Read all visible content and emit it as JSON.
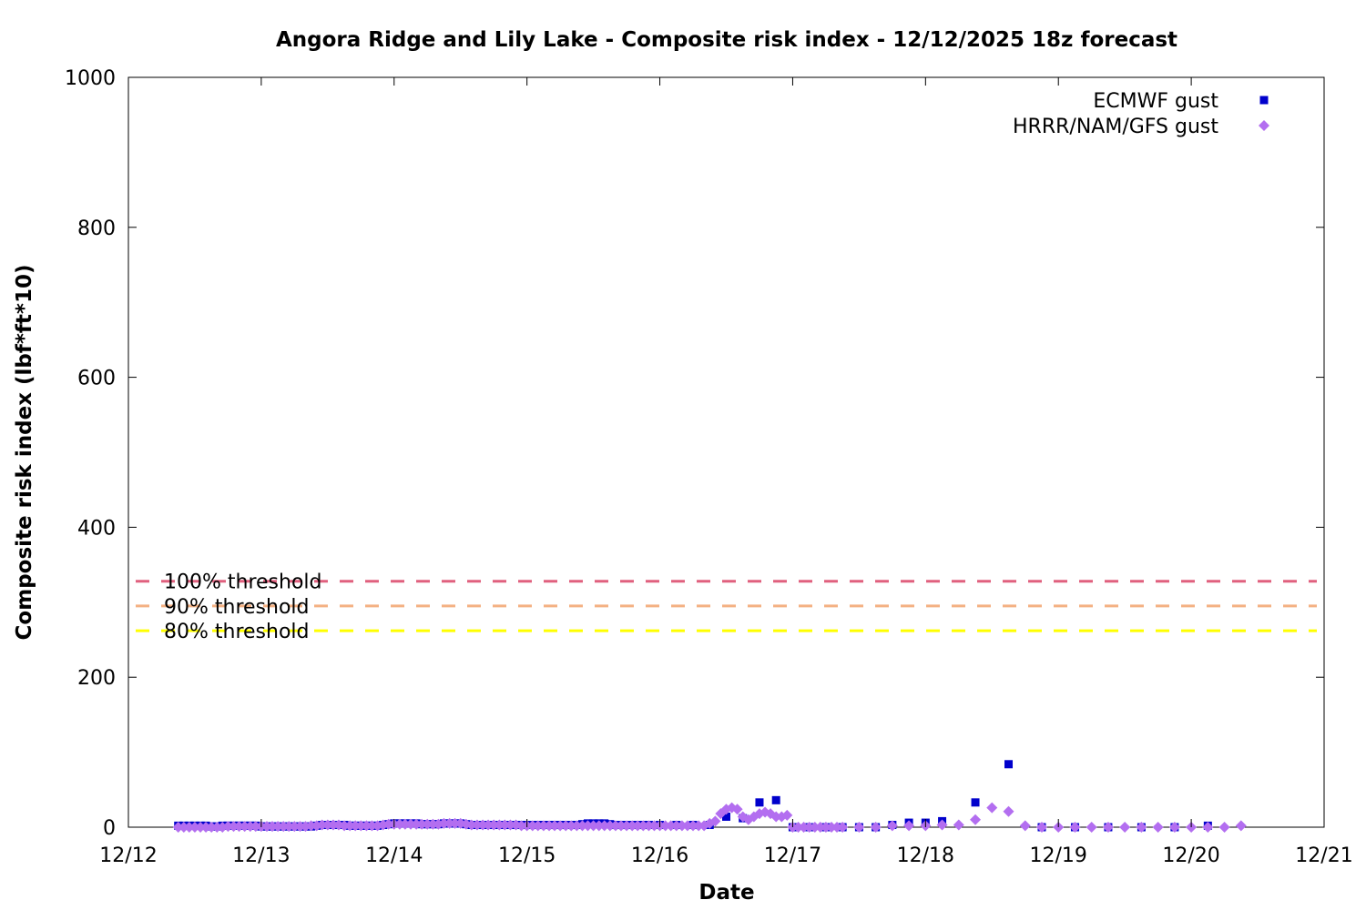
{
  "chart_data": {
    "type": "scatter",
    "title": "Angora Ridge and Lily Lake - Composite risk index - 12/12/2025 18z forecast",
    "xlabel": "Date",
    "ylabel": "Composite risk index (lbf*ft*10)",
    "xlim": [
      "12/12",
      "12/21"
    ],
    "ylim": [
      0,
      1000
    ],
    "x_ticks": [
      "12/12",
      "12/13",
      "12/14",
      "12/15",
      "12/16",
      "12/17",
      "12/18",
      "12/19",
      "12/20",
      "12/21"
    ],
    "y_ticks": [
      0,
      200,
      400,
      600,
      800,
      1000
    ],
    "grid": false,
    "legend_position": "top-right",
    "thresholds": [
      {
        "label": "100% threshold",
        "value": 328,
        "color": "#e0607e"
      },
      {
        "label": "90% threshold",
        "value": 295,
        "color": "#f4b183"
      },
      {
        "label": "80% threshold",
        "value": 262,
        "color": "#ffff00"
      }
    ],
    "series": [
      {
        "name": "ECMWF gust",
        "marker": "square",
        "color": "#0000cc",
        "points": [
          [
            0.375,
            2
          ],
          [
            0.417,
            2
          ],
          [
            0.458,
            2
          ],
          [
            0.5,
            2
          ],
          [
            0.542,
            2
          ],
          [
            0.583,
            2
          ],
          [
            0.625,
            1
          ],
          [
            0.667,
            1
          ],
          [
            0.708,
            2
          ],
          [
            0.75,
            2
          ],
          [
            0.792,
            2
          ],
          [
            0.833,
            2
          ],
          [
            0.875,
            2
          ],
          [
            0.917,
            2
          ],
          [
            0.958,
            2
          ],
          [
            1.0,
            1
          ],
          [
            1.042,
            1
          ],
          [
            1.083,
            1
          ],
          [
            1.125,
            1
          ],
          [
            1.167,
            1
          ],
          [
            1.208,
            1
          ],
          [
            1.25,
            1
          ],
          [
            1.292,
            1
          ],
          [
            1.333,
            1
          ],
          [
            1.375,
            1
          ],
          [
            1.417,
            2
          ],
          [
            1.458,
            3
          ],
          [
            1.5,
            3
          ],
          [
            1.542,
            3
          ],
          [
            1.583,
            3
          ],
          [
            1.625,
            3
          ],
          [
            1.667,
            2
          ],
          [
            1.708,
            2
          ],
          [
            1.75,
            2
          ],
          [
            1.792,
            2
          ],
          [
            1.833,
            2
          ],
          [
            1.875,
            2
          ],
          [
            1.917,
            3
          ],
          [
            1.958,
            4
          ],
          [
            2.0,
            5
          ],
          [
            2.042,
            5
          ],
          [
            2.083,
            5
          ],
          [
            2.125,
            5
          ],
          [
            2.167,
            5
          ],
          [
            2.208,
            4
          ],
          [
            2.25,
            4
          ],
          [
            2.292,
            4
          ],
          [
            2.333,
            4
          ],
          [
            2.375,
            5
          ],
          [
            2.417,
            5
          ],
          [
            2.458,
            5
          ],
          [
            2.5,
            5
          ],
          [
            2.542,
            4
          ],
          [
            2.583,
            3
          ],
          [
            2.625,
            3
          ],
          [
            2.667,
            3
          ],
          [
            2.708,
            3
          ],
          [
            2.75,
            3
          ],
          [
            2.792,
            3
          ],
          [
            2.833,
            3
          ],
          [
            2.875,
            3
          ],
          [
            2.917,
            3
          ],
          [
            2.958,
            3
          ],
          [
            3.0,
            3
          ],
          [
            3.042,
            3
          ],
          [
            3.083,
            3
          ],
          [
            3.125,
            3
          ],
          [
            3.167,
            3
          ],
          [
            3.208,
            3
          ],
          [
            3.25,
            3
          ],
          [
            3.292,
            3
          ],
          [
            3.333,
            3
          ],
          [
            3.375,
            3
          ],
          [
            3.417,
            4
          ],
          [
            3.458,
            5
          ],
          [
            3.5,
            5
          ],
          [
            3.542,
            5
          ],
          [
            3.583,
            5
          ],
          [
            3.625,
            4
          ],
          [
            3.667,
            3
          ],
          [
            3.708,
            3
          ],
          [
            3.75,
            3
          ],
          [
            3.792,
            3
          ],
          [
            3.833,
            3
          ],
          [
            3.875,
            3
          ],
          [
            3.917,
            3
          ],
          [
            4.0,
            3
          ],
          [
            4.125,
            3
          ],
          [
            4.25,
            3
          ],
          [
            4.375,
            3
          ],
          [
            4.5,
            14
          ],
          [
            4.625,
            12
          ],
          [
            4.75,
            33
          ],
          [
            4.875,
            36
          ],
          [
            5.0,
            0
          ],
          [
            5.125,
            0
          ],
          [
            5.25,
            0
          ],
          [
            5.375,
            0
          ],
          [
            5.5,
            0
          ],
          [
            5.625,
            0
          ],
          [
            5.75,
            3
          ],
          [
            5.875,
            6
          ],
          [
            6.0,
            6
          ],
          [
            6.125,
            8
          ],
          [
            6.375,
            33
          ],
          [
            6.625,
            84
          ],
          [
            6.875,
            0
          ],
          [
            7.125,
            0
          ],
          [
            7.375,
            0
          ],
          [
            7.625,
            0
          ],
          [
            7.875,
            0
          ],
          [
            8.125,
            2
          ]
        ]
      },
      {
        "name": "HRRR/NAM/GFS gust",
        "marker": "diamond",
        "color": "#b36ef0",
        "points": [
          [
            0.375,
            0
          ],
          [
            0.417,
            0
          ],
          [
            0.458,
            0
          ],
          [
            0.5,
            0
          ],
          [
            0.542,
            0
          ],
          [
            0.583,
            0
          ],
          [
            0.625,
            0
          ],
          [
            0.667,
            0
          ],
          [
            0.708,
            0
          ],
          [
            0.75,
            1
          ],
          [
            0.792,
            1
          ],
          [
            0.833,
            1
          ],
          [
            0.875,
            1
          ],
          [
            0.917,
            1
          ],
          [
            0.958,
            1
          ],
          [
            1.0,
            1
          ],
          [
            1.042,
            1
          ],
          [
            1.083,
            1
          ],
          [
            1.125,
            1
          ],
          [
            1.167,
            1
          ],
          [
            1.208,
            1
          ],
          [
            1.25,
            1
          ],
          [
            1.292,
            1
          ],
          [
            1.333,
            1
          ],
          [
            1.375,
            2
          ],
          [
            1.417,
            2
          ],
          [
            1.458,
            3
          ],
          [
            1.5,
            3
          ],
          [
            1.542,
            3
          ],
          [
            1.583,
            3
          ],
          [
            1.625,
            2
          ],
          [
            1.667,
            2
          ],
          [
            1.708,
            2
          ],
          [
            1.75,
            2
          ],
          [
            1.792,
            2
          ],
          [
            1.833,
            2
          ],
          [
            1.875,
            2
          ],
          [
            1.917,
            3
          ],
          [
            1.958,
            4
          ],
          [
            2.0,
            4
          ],
          [
            2.042,
            4
          ],
          [
            2.083,
            4
          ],
          [
            2.125,
            4
          ],
          [
            2.167,
            4
          ],
          [
            2.208,
            4
          ],
          [
            2.25,
            4
          ],
          [
            2.292,
            4
          ],
          [
            2.333,
            4
          ],
          [
            2.375,
            5
          ],
          [
            2.417,
            5
          ],
          [
            2.458,
            5
          ],
          [
            2.5,
            5
          ],
          [
            2.542,
            4
          ],
          [
            2.583,
            3
          ],
          [
            2.625,
            3
          ],
          [
            2.667,
            3
          ],
          [
            2.708,
            3
          ],
          [
            2.75,
            3
          ],
          [
            2.792,
            3
          ],
          [
            2.833,
            3
          ],
          [
            2.875,
            3
          ],
          [
            2.917,
            3
          ],
          [
            2.958,
            2
          ],
          [
            3.0,
            2
          ],
          [
            3.042,
            2
          ],
          [
            3.083,
            2
          ],
          [
            3.125,
            2
          ],
          [
            3.167,
            2
          ],
          [
            3.208,
            2
          ],
          [
            3.25,
            2
          ],
          [
            3.292,
            2
          ],
          [
            3.333,
            2
          ],
          [
            3.375,
            2
          ],
          [
            3.417,
            2
          ],
          [
            3.458,
            2
          ],
          [
            3.5,
            2
          ],
          [
            3.542,
            2
          ],
          [
            3.583,
            2
          ],
          [
            3.625,
            2
          ],
          [
            3.667,
            2
          ],
          [
            3.708,
            2
          ],
          [
            3.75,
            2
          ],
          [
            3.792,
            2
          ],
          [
            3.833,
            2
          ],
          [
            3.875,
            2
          ],
          [
            3.917,
            2
          ],
          [
            3.958,
            2
          ],
          [
            4.0,
            2
          ],
          [
            4.042,
            2
          ],
          [
            4.083,
            2
          ],
          [
            4.125,
            2
          ],
          [
            4.167,
            2
          ],
          [
            4.208,
            2
          ],
          [
            4.25,
            2
          ],
          [
            4.292,
            2
          ],
          [
            4.333,
            2
          ],
          [
            4.375,
            5
          ],
          [
            4.417,
            8
          ],
          [
            4.458,
            18
          ],
          [
            4.5,
            24
          ],
          [
            4.542,
            26
          ],
          [
            4.583,
            24
          ],
          [
            4.625,
            14
          ],
          [
            4.667,
            10
          ],
          [
            4.708,
            14
          ],
          [
            4.75,
            18
          ],
          [
            4.792,
            20
          ],
          [
            4.833,
            18
          ],
          [
            4.875,
            14
          ],
          [
            4.917,
            14
          ],
          [
            4.958,
            16
          ],
          [
            5.0,
            0
          ],
          [
            5.042,
            0
          ],
          [
            5.083,
            0
          ],
          [
            5.125,
            0
          ],
          [
            5.167,
            0
          ],
          [
            5.208,
            0
          ],
          [
            5.25,
            0
          ],
          [
            5.292,
            0
          ],
          [
            5.333,
            0
          ],
          [
            5.375,
            0
          ],
          [
            5.5,
            0
          ],
          [
            5.625,
            0
          ],
          [
            5.75,
            2
          ],
          [
            5.875,
            2
          ],
          [
            6.0,
            2
          ],
          [
            6.125,
            3
          ],
          [
            6.25,
            3
          ],
          [
            6.375,
            10
          ],
          [
            6.5,
            26
          ],
          [
            6.625,
            21
          ],
          [
            6.75,
            2
          ],
          [
            6.875,
            0
          ],
          [
            7.0,
            0
          ],
          [
            7.125,
            0
          ],
          [
            7.25,
            0
          ],
          [
            7.375,
            0
          ],
          [
            7.5,
            0
          ],
          [
            7.625,
            0
          ],
          [
            7.75,
            0
          ],
          [
            7.875,
            0
          ],
          [
            8.0,
            0
          ],
          [
            8.125,
            0
          ],
          [
            8.25,
            0
          ],
          [
            8.375,
            2
          ]
        ]
      }
    ]
  }
}
